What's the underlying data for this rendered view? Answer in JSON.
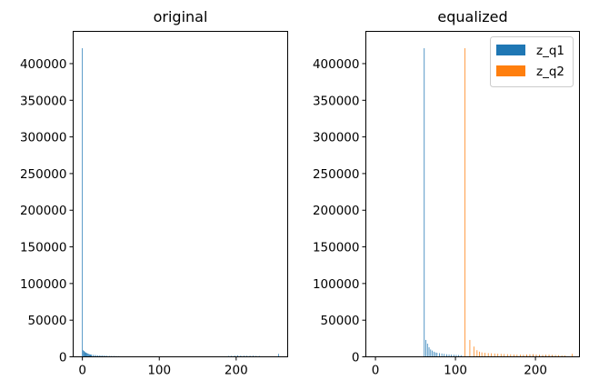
{
  "chart_data": [
    {
      "type": "bar",
      "title": "original",
      "xlabel": "",
      "ylabel": "",
      "xlim": [
        -12,
        267
      ],
      "ylim": [
        0,
        444000
      ],
      "xticks": [
        0,
        100,
        200
      ],
      "yticks": [
        0,
        50000,
        100000,
        150000,
        200000,
        250000,
        300000,
        350000,
        400000
      ],
      "grid": false,
      "series": [
        {
          "color": "#1f77b4",
          "x": [
            0,
            1,
            2,
            3,
            4,
            5,
            6,
            7,
            8,
            9,
            10,
            11,
            12,
            14,
            16,
            18,
            20,
            22,
            24,
            26,
            28,
            30,
            32,
            35,
            38,
            41,
            44,
            47,
            190,
            194,
            198,
            202,
            206,
            210,
            214,
            218,
            222,
            226,
            230,
            255
          ],
          "values": [
            421000,
            9000,
            8000,
            7000,
            6000,
            5500,
            5000,
            4500,
            4000,
            3500,
            3200,
            3000,
            2800,
            2600,
            2400,
            2200,
            2000,
            1900,
            1800,
            1700,
            1600,
            1500,
            1400,
            1300,
            1200,
            1100,
            1000,
            900,
            1200,
            1500,
            1800,
            2000,
            1800,
            1600,
            1500,
            1700,
            1600,
            1400,
            1300,
            4000
          ]
        }
      ]
    },
    {
      "type": "bar",
      "title": "equalized",
      "xlabel": "",
      "ylabel": "",
      "xlim": [
        -12,
        255
      ],
      "ylim": [
        0,
        444000
      ],
      "xticks": [
        0,
        100,
        200
      ],
      "yticks": [
        0,
        50000,
        100000,
        150000,
        200000,
        250000,
        300000,
        350000,
        400000
      ],
      "legend": "top-right",
      "grid": false,
      "series": [
        {
          "name": "z_q1",
          "color": "#1f77b4",
          "x": [
            61,
            63,
            65,
            67,
            69,
            71,
            73,
            75,
            77,
            80,
            83,
            86,
            89,
            92,
            95,
            98,
            101,
            104,
            107,
            185,
            189,
            193,
            197,
            201,
            205,
            209,
            213,
            217,
            221
          ],
          "values": [
            421000,
            23000,
            18000,
            13000,
            10000,
            8500,
            7000,
            6000,
            5500,
            5000,
            4500,
            4000,
            3500,
            3200,
            3000,
            2800,
            2600,
            2400,
            2200,
            1800,
            2200,
            2600,
            3000,
            2500,
            2200,
            2000,
            2400,
            2200,
            2000
          ]
        },
        {
          "name": "z_q2",
          "color": "#ff7f0e",
          "x": [
            112,
            118,
            123,
            127,
            130,
            133,
            137,
            141,
            145,
            149,
            153,
            157,
            161,
            165,
            169,
            173,
            177,
            181,
            185,
            189,
            193,
            197,
            201,
            205,
            209,
            213,
            217,
            221,
            225,
            229,
            233,
            237,
            246
          ],
          "values": [
            421000,
            23000,
            14000,
            9000,
            7000,
            6000,
            5500,
            5000,
            4800,
            4500,
            4200,
            4000,
            3800,
            3600,
            3400,
            3200,
            3000,
            3000,
            2800,
            3200,
            3400,
            3600,
            3000,
            2800,
            2600,
            2800,
            3000,
            2600,
            2400,
            2200,
            2000,
            1800,
            4000
          ]
        }
      ]
    }
  ]
}
